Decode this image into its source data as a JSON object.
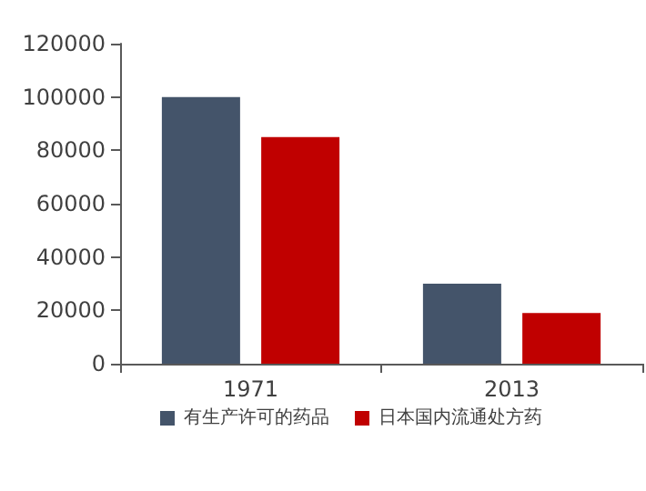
{
  "chart_data": {
    "type": "bar",
    "categories": [
      "1971",
      "2013"
    ],
    "series": [
      {
        "name": "有生产许可的药品",
        "color": "#44546a",
        "values": [
          100000,
          30000
        ]
      },
      {
        "name": "日本国内流通处方药",
        "color": "#c00000",
        "values": [
          85000,
          19000
        ]
      }
    ],
    "ylim": [
      0,
      120000
    ],
    "yticks": [
      0,
      20000,
      40000,
      60000,
      80000,
      100000,
      120000
    ],
    "grid": false,
    "legend": "bottom"
  }
}
